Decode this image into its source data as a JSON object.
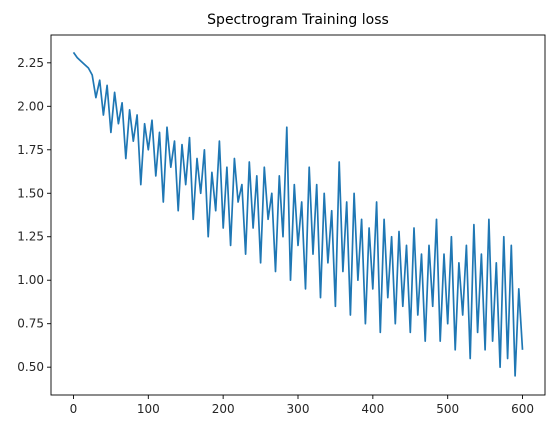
{
  "chart_data": {
    "type": "line",
    "title": "Spectrogram Training loss",
    "xlabel": "",
    "ylabel": "",
    "xlim": [
      -30,
      630
    ],
    "ylim": [
      0.34,
      2.41
    ],
    "x_ticks": [
      0,
      100,
      200,
      300,
      400,
      500,
      600
    ],
    "x_tick_labels": [
      "0",
      "100",
      "200",
      "300",
      "400",
      "500",
      "600"
    ],
    "y_ticks": [
      0.5,
      0.75,
      1.0,
      1.25,
      1.5,
      1.75,
      2.0,
      2.25
    ],
    "y_tick_labels": [
      "0.50",
      "0.75",
      "1.00",
      "1.25",
      "1.50",
      "1.75",
      "2.00",
      "2.25"
    ],
    "grid": false,
    "legend": "none",
    "colors": {
      "line": "#1f77b4",
      "axes": "#000000",
      "text": "#262626"
    },
    "series": [
      {
        "x": [
          0,
          5,
          10,
          15,
          20,
          25,
          30,
          35,
          40,
          45,
          50,
          55,
          60,
          65,
          70,
          75,
          80,
          85,
          90,
          95,
          100,
          105,
          110,
          115,
          120,
          125,
          130,
          135,
          140,
          145,
          150,
          155,
          160,
          165,
          170,
          175,
          180,
          185,
          190,
          195,
          200,
          205,
          210,
          215,
          220,
          225,
          230,
          235,
          240,
          245,
          250,
          255,
          260,
          265,
          270,
          275,
          280,
          285,
          290,
          295,
          300,
          305,
          310,
          315,
          320,
          325,
          330,
          335,
          340,
          345,
          350,
          355,
          360,
          365,
          370,
          375,
          380,
          385,
          390,
          395,
          400,
          405,
          410,
          415,
          420,
          425,
          430,
          435,
          440,
          445,
          450,
          455,
          460,
          465,
          470,
          475,
          480,
          485,
          490,
          495,
          500,
          505,
          510,
          515,
          520,
          525,
          530,
          535,
          540,
          545,
          550,
          555,
          560,
          565,
          570,
          575,
          580,
          585,
          590,
          595,
          600
        ],
        "values": [
          2.31,
          2.28,
          2.26,
          2.24,
          2.22,
          2.18,
          2.05,
          2.15,
          1.95,
          2.12,
          1.85,
          2.08,
          1.9,
          2.02,
          1.7,
          1.98,
          1.8,
          1.95,
          1.55,
          1.9,
          1.75,
          1.92,
          1.6,
          1.85,
          1.45,
          1.88,
          1.65,
          1.8,
          1.4,
          1.78,
          1.55,
          1.82,
          1.35,
          1.7,
          1.5,
          1.75,
          1.25,
          1.62,
          1.4,
          1.8,
          1.3,
          1.65,
          1.2,
          1.7,
          1.45,
          1.55,
          1.15,
          1.68,
          1.3,
          1.6,
          1.1,
          1.65,
          1.35,
          1.5,
          1.05,
          1.6,
          1.25,
          1.88,
          1.0,
          1.55,
          1.2,
          1.45,
          0.95,
          1.65,
          1.15,
          1.55,
          0.9,
          1.5,
          1.1,
          1.4,
          0.85,
          1.68,
          1.05,
          1.45,
          0.8,
          1.5,
          1.0,
          1.35,
          0.75,
          1.3,
          0.95,
          1.45,
          0.7,
          1.35,
          0.9,
          1.25,
          0.75,
          1.28,
          0.85,
          1.2,
          0.7,
          1.3,
          0.8,
          1.15,
          0.65,
          1.2,
          0.85,
          1.35,
          0.65,
          1.15,
          0.75,
          1.25,
          0.6,
          1.1,
          0.8,
          1.2,
          0.55,
          1.32,
          0.7,
          1.15,
          0.6,
          1.35,
          0.65,
          1.1,
          0.5,
          1.25,
          0.55,
          1.2,
          0.45,
          0.95,
          0.6
        ]
      }
    ]
  }
}
